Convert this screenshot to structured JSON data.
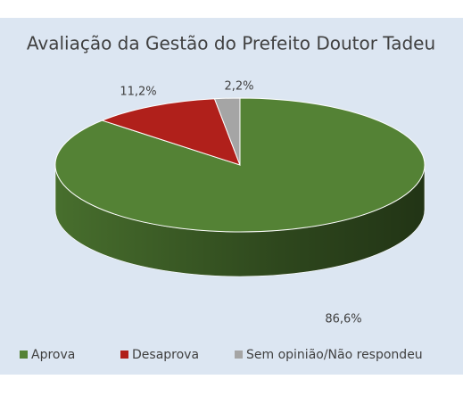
{
  "chart_data": {
    "type": "pie3d",
    "title": "Avaliação da Gestão do Prefeito Doutor Tadeu",
    "categories": [
      "Aprova",
      "Desaprova",
      "Sem opinião/Não respondeu"
    ],
    "values": [
      86.6,
      11.2,
      2.2
    ],
    "value_labels": [
      "86,6%",
      "11,2%",
      "2,2%"
    ],
    "colors": [
      "#548235",
      "#b0201b",
      "#a5a5a5"
    ],
    "legend": "bottom"
  }
}
